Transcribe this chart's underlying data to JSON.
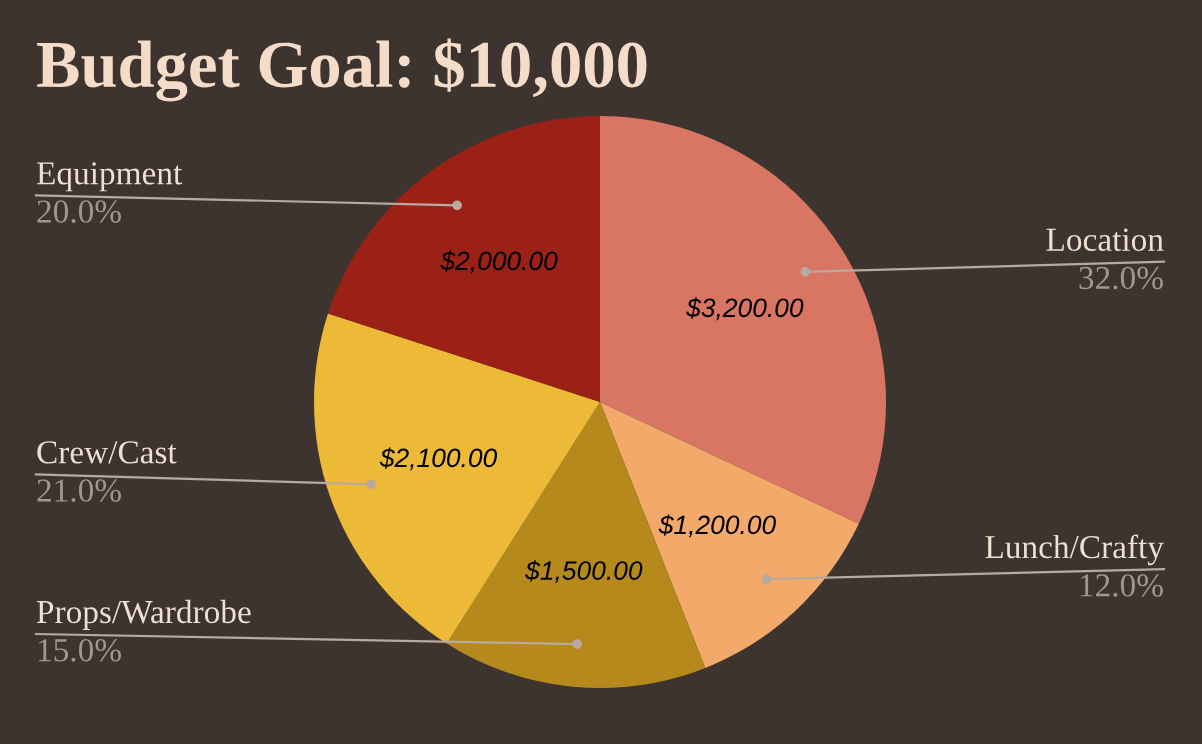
{
  "chart_data": {
    "type": "pie",
    "title": "Budget Goal: $10,000",
    "categories": [
      "Location",
      "Lunch/Crafty",
      "Props/Wardrobe",
      "Crew/Cast",
      "Equipment"
    ],
    "values": [
      3200,
      1200,
      1500,
      2100,
      2000
    ],
    "colors": [
      "#d87563",
      "#f2a96a",
      "#b5891c",
      "#ecba37",
      "#9b2116"
    ],
    "value_labels": [
      "$3,200.00",
      "$1,200.00",
      "$1,500.00",
      "$2,100.00",
      "$2,000.00"
    ],
    "annotations": [
      "32.0%",
      "12.0%",
      "15.0%",
      "21.0%",
      "20.0%"
    ],
    "legend": false
  }
}
